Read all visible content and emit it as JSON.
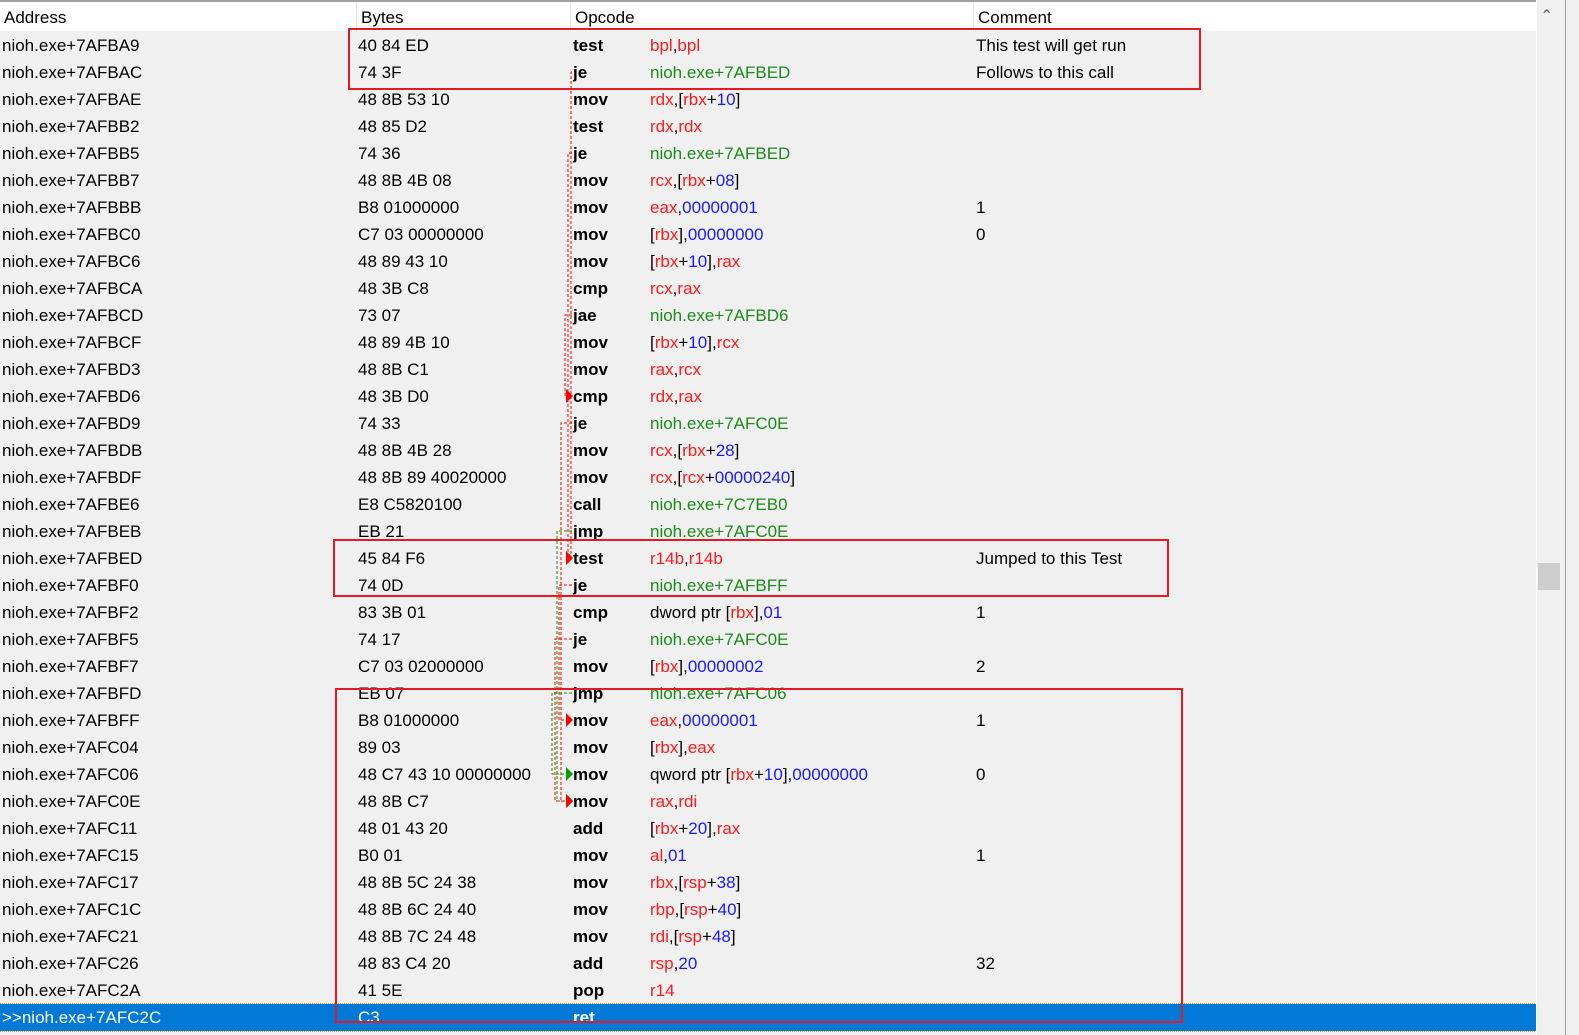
{
  "columns": [
    "Address",
    "Bytes",
    "Opcode",
    "Comment"
  ],
  "colors": {
    "register": "#ff1a1a",
    "number": "#1a1aff",
    "address": "#1a8c1a",
    "selection": "#0078d7",
    "annotation_box": "#e01b24"
  },
  "selected_index": 36,
  "rows": [
    {
      "address": "nioh.exe+7AFBA9",
      "bytes": "40 84 ED",
      "opcode": "test",
      "operands": "bpl,bpl",
      "comment": "This test will get run"
    },
    {
      "address": "nioh.exe+7AFBAC",
      "bytes": "74 3F",
      "opcode": "je",
      "operands": "nioh.exe+7AFBED",
      "comment": "Follows to this call"
    },
    {
      "address": "nioh.exe+7AFBAE",
      "bytes": "48 8B 53 10",
      "opcode": "mov",
      "operands": "rdx,[rbx+10]",
      "comment": ""
    },
    {
      "address": "nioh.exe+7AFBB2",
      "bytes": "48 85 D2",
      "opcode": "test",
      "operands": "rdx,rdx",
      "comment": ""
    },
    {
      "address": "nioh.exe+7AFBB5",
      "bytes": "74 36",
      "opcode": "je",
      "operands": "nioh.exe+7AFBED",
      "comment": ""
    },
    {
      "address": "nioh.exe+7AFBB7",
      "bytes": "48 8B 4B 08",
      "opcode": "mov",
      "operands": "rcx,[rbx+08]",
      "comment": ""
    },
    {
      "address": "nioh.exe+7AFBBB",
      "bytes": "B8 01000000",
      "opcode": "mov",
      "operands": "eax,00000001",
      "comment": "1"
    },
    {
      "address": "nioh.exe+7AFBC0",
      "bytes": "C7 03 00000000",
      "opcode": "mov",
      "operands": "[rbx],00000000",
      "comment": "0"
    },
    {
      "address": "nioh.exe+7AFBC6",
      "bytes": "48 89 43 10",
      "opcode": "mov",
      "operands": "[rbx+10],rax",
      "comment": ""
    },
    {
      "address": "nioh.exe+7AFBCA",
      "bytes": "48 3B C8",
      "opcode": "cmp",
      "operands": "rcx,rax",
      "comment": ""
    },
    {
      "address": "nioh.exe+7AFBCD",
      "bytes": "73 07",
      "opcode": "jae",
      "operands": "nioh.exe+7AFBD6",
      "comment": ""
    },
    {
      "address": "nioh.exe+7AFBCF",
      "bytes": "48 89 4B 10",
      "opcode": "mov",
      "operands": "[rbx+10],rcx",
      "comment": ""
    },
    {
      "address": "nioh.exe+7AFBD3",
      "bytes": "48 8B C1",
      "opcode": "mov",
      "operands": "rax,rcx",
      "comment": ""
    },
    {
      "address": "nioh.exe+7AFBD6",
      "bytes": "48 3B D0",
      "opcode": "cmp",
      "operands": "rdx,rax",
      "comment": ""
    },
    {
      "address": "nioh.exe+7AFBD9",
      "bytes": "74 33",
      "opcode": "je",
      "operands": "nioh.exe+7AFC0E",
      "comment": ""
    },
    {
      "address": "nioh.exe+7AFBDB",
      "bytes": "48 8B 4B 28",
      "opcode": "mov",
      "operands": "rcx,[rbx+28]",
      "comment": ""
    },
    {
      "address": "nioh.exe+7AFBDF",
      "bytes": "48 8B 89 40020000",
      "opcode": "mov",
      "operands": "rcx,[rcx+00000240]",
      "comment": ""
    },
    {
      "address": "nioh.exe+7AFBE6",
      "bytes": "E8 C5820100",
      "opcode": "call",
      "operands": "nioh.exe+7C7EB0",
      "comment": ""
    },
    {
      "address": "nioh.exe+7AFBEB",
      "bytes": "EB 21",
      "opcode": "jmp",
      "operands": "nioh.exe+7AFC0E",
      "comment": ""
    },
    {
      "address": "nioh.exe+7AFBED",
      "bytes": "45 84 F6",
      "opcode": "test",
      "operands": "r14b,r14b",
      "comment": "Jumped to this Test"
    },
    {
      "address": "nioh.exe+7AFBF0",
      "bytes": "74 0D",
      "opcode": "je",
      "operands": "nioh.exe+7AFBFF",
      "comment": ""
    },
    {
      "address": "nioh.exe+7AFBF2",
      "bytes": "83 3B 01",
      "opcode": "cmp",
      "operands": "dword ptr [rbx],01",
      "comment": "1"
    },
    {
      "address": "nioh.exe+7AFBF5",
      "bytes": "74 17",
      "opcode": "je",
      "operands": "nioh.exe+7AFC0E",
      "comment": ""
    },
    {
      "address": "nioh.exe+7AFBF7",
      "bytes": "C7 03 02000000",
      "opcode": "mov",
      "operands": "[rbx],00000002",
      "comment": "2"
    },
    {
      "address": "nioh.exe+7AFBFD",
      "bytes": "EB 07",
      "opcode": "jmp",
      "operands": "nioh.exe+7AFC06",
      "comment": ""
    },
    {
      "address": "nioh.exe+7AFBFF",
      "bytes": "B8 01000000",
      "opcode": "mov",
      "operands": "eax,00000001",
      "comment": "1"
    },
    {
      "address": "nioh.exe+7AFC04",
      "bytes": "89 03",
      "opcode": "mov",
      "operands": "[rbx],eax",
      "comment": ""
    },
    {
      "address": "nioh.exe+7AFC06",
      "bytes": "48 C7 43 10 00000000",
      "opcode": "mov",
      "operands": "qword ptr [rbx+10],00000000",
      "comment": "0"
    },
    {
      "address": "nioh.exe+7AFC0E",
      "bytes": "48 8B C7",
      "opcode": "mov",
      "operands": "rax,rdi",
      "comment": ""
    },
    {
      "address": "nioh.exe+7AFC11",
      "bytes": "48 01 43 20",
      "opcode": "add",
      "operands": "[rbx+20],rax",
      "comment": ""
    },
    {
      "address": "nioh.exe+7AFC15",
      "bytes": "B0 01",
      "opcode": "mov",
      "operands": "al,01",
      "comment": "1"
    },
    {
      "address": "nioh.exe+7AFC17",
      "bytes": "48 8B 5C 24 38",
      "opcode": "mov",
      "operands": "rbx,[rsp+38]",
      "comment": ""
    },
    {
      "address": "nioh.exe+7AFC1C",
      "bytes": "48 8B 6C 24 40",
      "opcode": "mov",
      "operands": "rbp,[rsp+40]",
      "comment": ""
    },
    {
      "address": "nioh.exe+7AFC21",
      "bytes": "48 8B 7C 24 48",
      "opcode": "mov",
      "operands": "rdi,[rsp+48]",
      "comment": ""
    },
    {
      "address": "nioh.exe+7AFC26",
      "bytes": "48 83 C4 20",
      "opcode": "add",
      "operands": "rsp,20",
      "comment": "32"
    },
    {
      "address": "nioh.exe+7AFC2A",
      "bytes": "41 5E",
      "opcode": "pop",
      "operands": "r14",
      "comment": ""
    },
    {
      "address": ">>nioh.exe+7AFC2C",
      "bytes": "C3",
      "opcode": "ret",
      "operands": "",
      "comment": ""
    }
  ],
  "jumps": [
    {
      "from": 1,
      "to": 19,
      "color": "red"
    },
    {
      "from": 4,
      "to": 19,
      "color": "red"
    },
    {
      "from": 10,
      "to": 13,
      "color": "red"
    },
    {
      "from": 14,
      "to": 28,
      "color": "red"
    },
    {
      "from": 18,
      "to": 28,
      "color": "green"
    },
    {
      "from": 20,
      "to": 25,
      "color": "red"
    },
    {
      "from": 22,
      "to": 28,
      "color": "red"
    },
    {
      "from": 24,
      "to": 27,
      "color": "green"
    }
  ],
  "scrollbar": {
    "up_icon": "chevron-up-icon"
  }
}
